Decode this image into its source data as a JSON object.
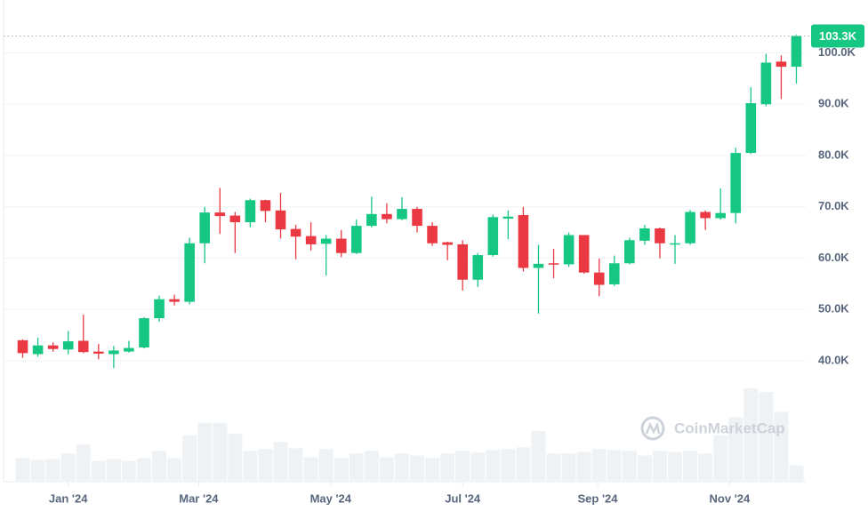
{
  "chart_data": {
    "type": "candlestick",
    "watermark": "CoinMarketCap",
    "up_color": "#16c784",
    "down_color": "#ea3943",
    "volume_color": "#eff2f5",
    "xlim": [
      -0.5,
      51.5
    ],
    "xticks": [
      {
        "value": 3,
        "label": "Jan '24"
      },
      {
        "value": 11.6,
        "label": "Mar '24"
      },
      {
        "value": 20.3,
        "label": "May '24"
      },
      {
        "value": 29,
        "label": "Jul '24"
      },
      {
        "value": 37.9,
        "label": "Sep '24"
      },
      {
        "value": 46.6,
        "label": "Nov '24"
      }
    ],
    "ylim": [
      20000,
      110000
    ],
    "yticks": [
      {
        "value": 40000,
        "label": "40.0K"
      },
      {
        "value": 50000,
        "label": "50.0K"
      },
      {
        "value": 60000,
        "label": "60.0K"
      },
      {
        "value": 70000,
        "label": "70.0K"
      },
      {
        "value": 80000,
        "label": "80.0K"
      },
      {
        "value": 90000,
        "label": "90.0K"
      },
      {
        "value": 100000,
        "label": "100.0K"
      }
    ],
    "grid": true,
    "last_price": {
      "value": 103300,
      "label": "103.3K"
    },
    "open": [
      44000,
      41300,
      43000,
      42200,
      43900,
      41800,
      41300,
      41800,
      42600,
      48300,
      52000,
      51500,
      62900,
      68900,
      68300,
      67000,
      71300,
      69300,
      65700,
      64300,
      62800,
      63800,
      61000,
      66300,
      68600,
      67600,
      69600,
      66300,
      63100,
      62700,
      55800,
      60600,
      67700,
      68400,
      58100,
      59000,
      58800,
      64500,
      57200,
      54900,
      59000,
      63400,
      65800,
      62800,
      62900,
      69000,
      67800,
      68800,
      80500,
      90000,
      98300,
      97300
    ],
    "high": [
      44200,
      44500,
      43600,
      45800,
      49000,
      43300,
      42900,
      43900,
      48500,
      52700,
      52900,
      64000,
      70000,
      73700,
      69000,
      71600,
      71400,
      72700,
      66500,
      67000,
      64500,
      65500,
      67500,
      72000,
      70700,
      71900,
      70000,
      67000,
      63200,
      63500,
      61000,
      68500,
      69300,
      70000,
      62600,
      61800,
      65000,
      64500,
      59900,
      60500,
      64000,
      66500,
      66000,
      64500,
      69400,
      69300,
      73600,
      81500,
      93300,
      99800,
      99500,
      103500
    ],
    "low": [
      40600,
      40800,
      41800,
      41300,
      41500,
      40300,
      38600,
      41600,
      42400,
      47600,
      50800,
      51000,
      59000,
      64700,
      61000,
      66000,
      67000,
      63800,
      59800,
      61500,
      56600,
      60200,
      60800,
      66000,
      66800,
      67400,
      65000,
      62400,
      59600,
      53700,
      54400,
      60300,
      63700,
      57400,
      49200,
      56100,
      58300,
      57000,
      52600,
      54600,
      58800,
      62600,
      60000,
      58900,
      62600,
      65500,
      67500,
      66800,
      80300,
      89600,
      91000,
      94000
    ],
    "close": [
      41500,
      43000,
      42300,
      43800,
      41700,
      41400,
      42000,
      42500,
      48300,
      52000,
      51500,
      62900,
      68900,
      68200,
      67000,
      71300,
      69200,
      65600,
      64200,
      62700,
      63800,
      61000,
      66300,
      68600,
      67600,
      69600,
      66300,
      62900,
      62600,
      55800,
      60600,
      68000,
      68100,
      58100,
      58900,
      58800,
      64500,
      57200,
      54800,
      59000,
      63500,
      65800,
      62900,
      62900,
      69000,
      67800,
      68800,
      80500,
      90200,
      98100,
      97300,
      103300
    ],
    "volume": [
      25,
      23,
      24,
      30,
      40,
      22,
      24,
      22,
      25,
      33,
      25,
      50,
      64,
      64,
      52,
      33,
      35,
      43,
      36,
      26,
      35,
      25,
      30,
      33,
      26,
      30,
      28,
      25,
      30,
      33,
      31,
      34,
      35,
      37,
      55,
      30,
      30,
      32,
      35,
      34,
      33,
      28,
      33,
      32,
      33,
      30,
      50,
      70,
      102,
      98,
      76,
      17
    ]
  }
}
